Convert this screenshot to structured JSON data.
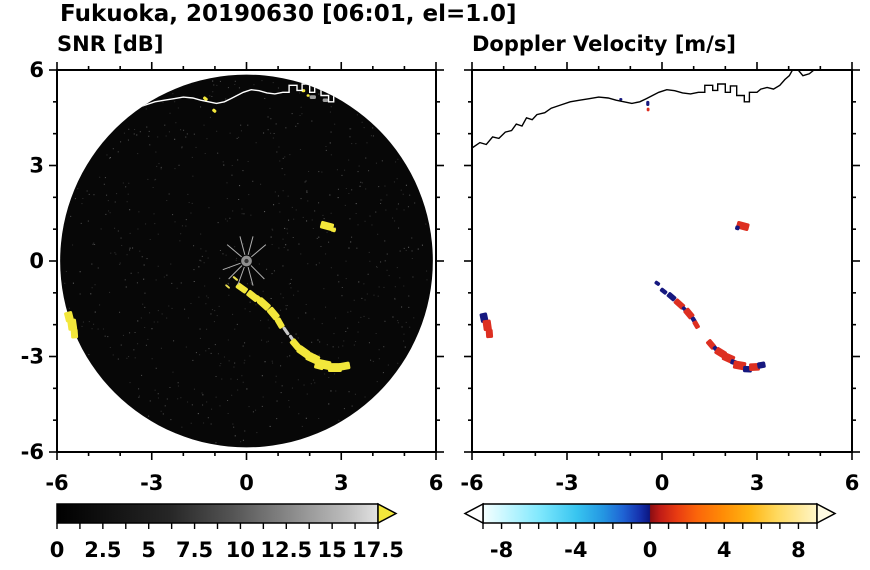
{
  "header": {
    "title": "Fukuoka, 20190630 [06:01, el=1.0]"
  },
  "chart_data": [
    {
      "type": "heatmap",
      "subtype": "radar-ppi-scan",
      "title": "SNR [dB]",
      "units": "dB",
      "xlim": [
        -6,
        6
      ],
      "ylim": [
        -6,
        6
      ],
      "xticks": [
        -6,
        -3,
        0,
        3,
        6
      ],
      "yticks": [
        -6,
        -3,
        0,
        3,
        6
      ],
      "show_y_labels": true,
      "minor_tick_step": 1,
      "plot_bg": "#ffffff",
      "scan_disk": {
        "cx": 0,
        "cy": 0,
        "radius": 5.9,
        "fill": "#070707"
      },
      "coastline_color": "#ffffff",
      "center_mark": {
        "x": 0,
        "y": 0,
        "radius": 0.17,
        "fill": "#8f8f8f",
        "core": "#333333",
        "spoke_color": "#b0b0b0",
        "spoke_angles_deg": [
          40,
          75,
          105,
          140,
          200,
          225,
          250,
          285,
          315
        ],
        "spoke_inner": 0.2,
        "spoke_outer": 0.8
      },
      "echoes": [
        [
          -0.15,
          -0.85,
          0.38,
          0.2,
          -35,
          "#f3e73b"
        ],
        [
          0.2,
          -1.1,
          0.4,
          0.22,
          -38,
          "#f3e73b"
        ],
        [
          0.4,
          -1.22,
          0.3,
          0.18,
          -40,
          "#f3e73b"
        ],
        [
          0.55,
          -1.35,
          0.42,
          0.24,
          -42,
          "#f3e73b"
        ],
        [
          0.85,
          -1.65,
          0.4,
          0.24,
          -50,
          "#f3e73b"
        ],
        [
          1.05,
          -1.95,
          0.34,
          0.2,
          -60,
          "#f3e73b"
        ],
        [
          1.25,
          -2.2,
          0.3,
          0.1,
          -55,
          "#c9c9c9"
        ],
        [
          1.45,
          -2.45,
          0.3,
          0.1,
          -55,
          "#c9c9c9"
        ],
        [
          1.55,
          -2.62,
          0.36,
          0.22,
          -50,
          "#f3e73b"
        ],
        [
          1.8,
          -2.85,
          0.4,
          0.26,
          -35,
          "#f3e73b"
        ],
        [
          2.1,
          -3.05,
          0.42,
          0.28,
          -25,
          "#f3e73b"
        ],
        [
          2.3,
          -3.3,
          0.3,
          0.2,
          -15,
          "#f3e73b"
        ],
        [
          2.45,
          -3.25,
          0.44,
          0.28,
          -12,
          "#f3e73b"
        ],
        [
          2.8,
          -3.35,
          0.44,
          0.28,
          0,
          "#f3e73b"
        ],
        [
          3.1,
          -3.3,
          0.36,
          0.24,
          10,
          "#f3e73b"
        ],
        [
          -5.62,
          -1.75,
          0.26,
          0.32,
          14,
          "#f3e73b"
        ],
        [
          -5.52,
          -2.0,
          0.28,
          0.36,
          8,
          "#f3e73b"
        ],
        [
          -5.45,
          -2.28,
          0.22,
          0.3,
          4,
          "#f3e73b"
        ],
        [
          2.55,
          1.1,
          0.42,
          0.24,
          -15,
          "#f3e73b"
        ],
        [
          2.75,
          0.98,
          0.16,
          0.14,
          -15,
          "#f3e73b"
        ],
        [
          -1.3,
          5.1,
          0.16,
          0.1,
          -40,
          "#f3e73b"
        ],
        [
          -1.02,
          4.72,
          0.14,
          0.1,
          -40,
          "#f3e73b"
        ],
        [
          1.8,
          5.35,
          0.12,
          0.1,
          0,
          "#f3e73b"
        ],
        [
          1.95,
          5.2,
          0.1,
          0.08,
          0,
          "#f3e73b"
        ],
        [
          -0.35,
          -0.55,
          0.2,
          0.07,
          -40,
          "#e8dc50"
        ],
        [
          -0.6,
          -0.8,
          0.18,
          0.06,
          -40,
          "#e8dc50"
        ],
        [
          2.1,
          5.15,
          0.2,
          0.12,
          0,
          "#9e9e9e"
        ],
        [
          2.5,
          5.05,
          0.18,
          0.11,
          0,
          "#9e9e9e"
        ]
      ],
      "colorbar": {
        "vmin": 0,
        "vmax": 17.5,
        "tick_labels": [
          "0",
          "2.5",
          "5",
          "7.5",
          "10",
          "12.5",
          "15",
          "17.5"
        ],
        "tick_values": [
          0,
          2.5,
          5,
          7.5,
          10,
          12.5,
          15,
          17.5
        ],
        "minor_tick_step": 1.25,
        "gradient_stops": [
          {
            "at": 0.0,
            "color": "#000000"
          },
          {
            "at": 0.35,
            "color": "#262626"
          },
          {
            "at": 0.55,
            "color": "#555555"
          },
          {
            "at": 0.75,
            "color": "#909090"
          },
          {
            "at": 0.9,
            "color": "#bcbcbc"
          },
          {
            "at": 1.0,
            "color": "#e2e2e2"
          }
        ],
        "extend_left": null,
        "extend_right": {
          "color": "#f3e73b"
        }
      }
    },
    {
      "type": "heatmap",
      "subtype": "radar-ppi-scan",
      "title": "Doppler Velocity [m/s]",
      "units": "m/s",
      "xlim": [
        -6,
        6
      ],
      "ylim": [
        -6,
        6
      ],
      "xticks": [
        -6,
        -3,
        0,
        3,
        6
      ],
      "yticks": [
        -6,
        -3,
        0,
        3,
        6
      ],
      "show_y_labels": false,
      "minor_tick_step": 1,
      "plot_bg": "#ffffff",
      "scan_disk": null,
      "coastline_color": "#000000",
      "center_mark": null,
      "echoes": [
        [
          -0.15,
          -0.7,
          0.18,
          0.12,
          -35,
          "#16187f"
        ],
        [
          0.05,
          -0.95,
          0.24,
          0.14,
          -38,
          "#16187f"
        ],
        [
          0.3,
          -1.12,
          0.3,
          0.18,
          -40,
          "#16187f"
        ],
        [
          0.55,
          -1.35,
          0.36,
          0.2,
          -42,
          "#dd2f21"
        ],
        [
          0.7,
          -1.5,
          0.16,
          0.12,
          -45,
          "#16187f"
        ],
        [
          0.85,
          -1.65,
          0.34,
          0.22,
          -50,
          "#dd2f21"
        ],
        [
          1.0,
          -1.85,
          0.2,
          0.14,
          -58,
          "#16187f"
        ],
        [
          1.08,
          -2.0,
          0.26,
          0.16,
          -60,
          "#dd2f21"
        ],
        [
          1.55,
          -2.62,
          0.32,
          0.2,
          -50,
          "#dd2f21"
        ],
        [
          1.7,
          -2.76,
          0.2,
          0.14,
          -45,
          "#16187f"
        ],
        [
          1.85,
          -2.88,
          0.36,
          0.24,
          -32,
          "#dd2f21"
        ],
        [
          2.1,
          -3.05,
          0.38,
          0.26,
          -24,
          "#dd2f21"
        ],
        [
          2.26,
          -3.18,
          0.2,
          0.16,
          -18,
          "#16187f"
        ],
        [
          2.45,
          -3.28,
          0.4,
          0.26,
          -10,
          "#dd2f21"
        ],
        [
          2.7,
          -3.4,
          0.28,
          0.2,
          -3,
          "#16187f"
        ],
        [
          2.92,
          -3.33,
          0.34,
          0.24,
          2,
          "#dd2f21"
        ],
        [
          3.14,
          -3.27,
          0.26,
          0.2,
          10,
          "#16187f"
        ],
        [
          -5.62,
          -1.78,
          0.24,
          0.3,
          12,
          "#16187f"
        ],
        [
          -5.52,
          -2.02,
          0.26,
          0.34,
          8,
          "#dd2f21"
        ],
        [
          -5.45,
          -2.28,
          0.22,
          0.28,
          4,
          "#dd2f21"
        ],
        [
          2.55,
          1.1,
          0.4,
          0.24,
          -15,
          "#dd2f21"
        ],
        [
          2.38,
          1.04,
          0.14,
          0.14,
          -15,
          "#16187f"
        ],
        [
          -0.45,
          4.95,
          0.1,
          0.16,
          0,
          "#16187f"
        ],
        [
          -0.44,
          4.76,
          0.09,
          0.12,
          0,
          "#dd2f21"
        ],
        [
          -1.3,
          5.08,
          0.1,
          0.08,
          0,
          "#16187f"
        ]
      ],
      "colorbar": {
        "vmin": -9,
        "vmax": 9,
        "tick_labels": [
          "-8",
          "-4",
          "0",
          "4",
          "8"
        ],
        "tick_values": [
          -8,
          -4,
          0,
          4,
          8
        ],
        "minor_tick_step": 1,
        "gradient_stops": [
          {
            "at": 0.0,
            "color": "#f6ffff"
          },
          {
            "at": 0.06,
            "color": "#ccf8ff"
          },
          {
            "at": 0.17,
            "color": "#7fe8fd"
          },
          {
            "at": 0.28,
            "color": "#38c5f0"
          },
          {
            "at": 0.36,
            "color": "#2496e2"
          },
          {
            "at": 0.42,
            "color": "#1f63d4"
          },
          {
            "at": 0.47,
            "color": "#1531ad"
          },
          {
            "at": 0.499,
            "color": "#0b1680"
          },
          {
            "at": 0.501,
            "color": "#8c0e12"
          },
          {
            "at": 0.53,
            "color": "#c01c16"
          },
          {
            "at": 0.58,
            "color": "#e83b12"
          },
          {
            "at": 0.64,
            "color": "#fb650a"
          },
          {
            "at": 0.72,
            "color": "#ff8d06"
          },
          {
            "at": 0.8,
            "color": "#ffb513"
          },
          {
            "at": 0.88,
            "color": "#ffd95e"
          },
          {
            "at": 1.0,
            "color": "#fff6c8"
          }
        ],
        "extend_left": {
          "color": "#ffffff"
        },
        "extend_right": {
          "color": "#fffbe2"
        }
      }
    }
  ],
  "geo": {
    "coastline": [
      [
        [
          -6.0,
          3.55
        ],
        [
          -5.75,
          3.72
        ],
        [
          -5.55,
          3.66
        ],
        [
          -5.35,
          3.9
        ],
        [
          -5.15,
          3.85
        ],
        [
          -4.95,
          4.05
        ],
        [
          -4.75,
          4.1
        ],
        [
          -4.6,
          4.3
        ],
        [
          -4.42,
          4.24
        ],
        [
          -4.28,
          4.5
        ],
        [
          -4.1,
          4.44
        ],
        [
          -3.95,
          4.6
        ],
        [
          -3.7,
          4.66
        ],
        [
          -3.5,
          4.8
        ],
        [
          -3.2,
          4.9
        ],
        [
          -2.9,
          5.0
        ],
        [
          -2.6,
          5.05
        ],
        [
          -2.3,
          5.1
        ],
        [
          -2.0,
          5.15
        ],
        [
          -1.7,
          5.12
        ],
        [
          -1.45,
          5.05
        ],
        [
          -1.2,
          5.0
        ],
        [
          -0.95,
          4.95
        ],
        [
          -0.7,
          5.0
        ],
        [
          -0.5,
          5.1
        ],
        [
          -0.3,
          5.2
        ],
        [
          -0.1,
          5.3
        ],
        [
          0.15,
          5.38
        ],
        [
          0.4,
          5.35
        ],
        [
          0.65,
          5.28
        ],
        [
          0.9,
          5.25
        ],
        [
          1.15,
          5.3
        ],
        [
          1.35,
          5.3
        ],
        [
          1.35,
          5.52
        ],
        [
          1.6,
          5.52
        ],
        [
          1.6,
          5.36
        ],
        [
          1.76,
          5.36
        ],
        [
          1.76,
          5.56
        ],
        [
          2.0,
          5.56
        ],
        [
          2.0,
          5.3
        ],
        [
          2.16,
          5.3
        ],
        [
          2.16,
          5.5
        ],
        [
          2.36,
          5.5
        ],
        [
          2.36,
          5.2
        ],
        [
          2.6,
          5.2
        ],
        [
          2.6,
          5.0
        ],
        [
          2.76,
          5.0
        ],
        [
          2.76,
          5.3
        ],
        [
          3.0,
          5.3
        ],
        [
          3.12,
          5.4
        ],
        [
          3.32,
          5.45
        ],
        [
          3.52,
          5.4
        ],
        [
          3.72,
          5.52
        ],
        [
          3.88,
          5.7
        ],
        [
          4.02,
          5.82
        ],
        [
          4.12,
          6.0
        ]
      ],
      [
        [
          4.3,
          6.0
        ],
        [
          4.45,
          5.82
        ],
        [
          4.65,
          5.88
        ],
        [
          4.8,
          6.0
        ]
      ]
    ]
  }
}
